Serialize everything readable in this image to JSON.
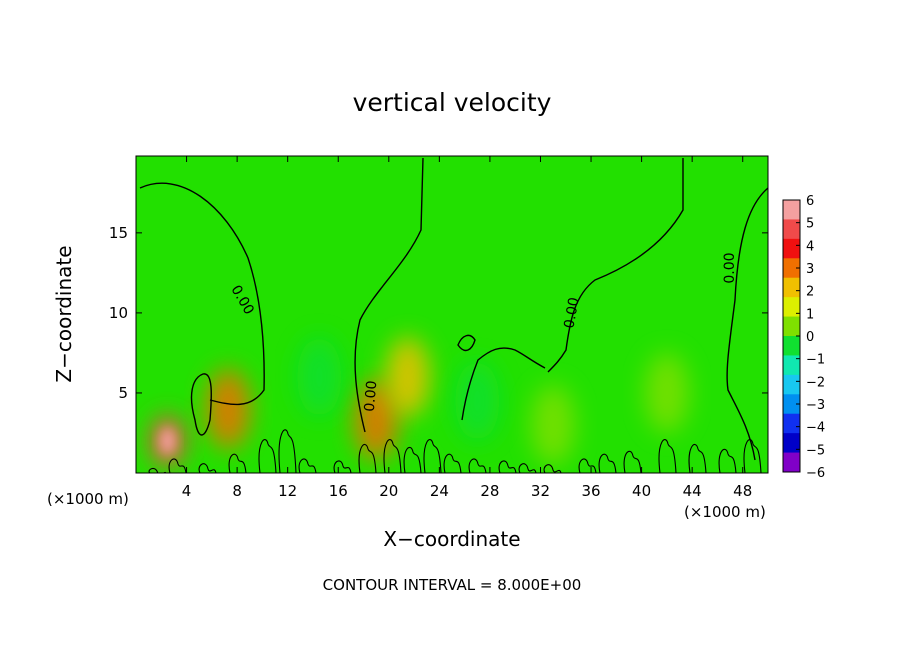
{
  "chart_data": {
    "type": "heatmap",
    "title": "vertical velocity",
    "xlabel": "X−coordinate",
    "ylabel": "Z−coordinate",
    "x_unit": "(×1000 m)",
    "x_ticks": [
      4,
      8,
      12,
      16,
      20,
      24,
      28,
      32,
      36,
      40,
      44,
      48
    ],
    "y_ticks": [
      5,
      10,
      15
    ],
    "xlim": [
      0,
      50
    ],
    "ylim": [
      0,
      19.8
    ],
    "colorbar": {
      "ticks": [
        "6",
        "5",
        "4",
        "3",
        "2",
        "1",
        "0",
        "−1",
        "−2",
        "−3",
        "−4",
        "−5",
        "−6"
      ],
      "levels": [
        {
          "value": 5.5,
          "color": "#f4a0a0"
        },
        {
          "value": 4.5,
          "color": "#f04a4a"
        },
        {
          "value": 3.5,
          "color": "#f01010"
        },
        {
          "value": 2.5,
          "color": "#f07000"
        },
        {
          "value": 1.5,
          "color": "#f0c000"
        },
        {
          "value": 0.5,
          "color": "#dcef00"
        },
        {
          "value": -0.5,
          "color": "#7fe000"
        },
        {
          "value": -1.5,
          "color": "#10e030"
        },
        {
          "value": -2.5,
          "color": "#10e8b0"
        },
        {
          "value": -3.5,
          "color": "#18c8f0"
        },
        {
          "value": -4.5,
          "color": "#0090f0"
        },
        {
          "value": -5.5,
          "color": "#1030f0"
        },
        {
          "value": -6.0,
          "color": "#0000c8"
        },
        {
          "value": -6.5,
          "color": "#8000c8"
        }
      ]
    },
    "background_color": "#22e000",
    "anomalies": [
      {
        "label": "strong updraft",
        "x": 2.5,
        "z": 2.0,
        "value": 4.5
      },
      {
        "label": "updraft",
        "x": 7.3,
        "z": 4.0,
        "value": 2.0
      },
      {
        "label": "updraft",
        "x": 19.0,
        "z": 3.3,
        "value": 2.5
      },
      {
        "label": "updraft",
        "x": 21.5,
        "z": 6.0,
        "value": 1.5
      },
      {
        "label": "downdraft",
        "x": 14.5,
        "z": 6.0,
        "value": -1.6
      },
      {
        "label": "downdraft",
        "x": 27.0,
        "z": 4.5,
        "value": -1.2
      },
      {
        "label": "downdraft",
        "x": 33.0,
        "z": 3.0,
        "value": -1.0
      },
      {
        "label": "downdraft",
        "x": 42.0,
        "z": 5.0,
        "value": -0.8
      }
    ],
    "contour_labels": [
      {
        "text": "0.00",
        "x": 8.4,
        "z": 10.8,
        "angle": 60
      },
      {
        "text": "0.00",
        "x": 18.6,
        "z": 4.8,
        "angle": -85
      },
      {
        "text": "0.00",
        "x": 34.5,
        "z": 10.0,
        "angle": -80
      },
      {
        "text": "0.00",
        "x": 47.0,
        "z": 12.8,
        "angle": -90
      }
    ],
    "contour_interval_text": "CONTOUR INTERVAL = 8.000E+00"
  }
}
